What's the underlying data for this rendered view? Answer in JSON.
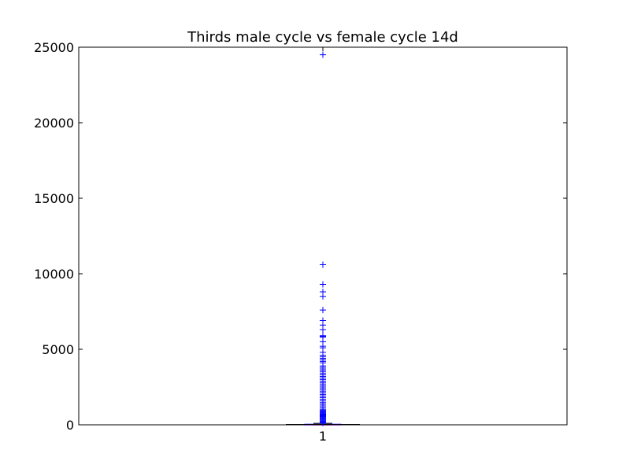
{
  "chart_data": {
    "type": "box",
    "title": "Thirds male cycle vs female cycle 14d",
    "xlabel": "",
    "ylabel": "",
    "categories": [
      "1"
    ],
    "ylim": [
      0,
      25000
    ],
    "yticks": [
      0,
      5000,
      10000,
      15000,
      20000,
      25000
    ],
    "ytick_labels": [
      "0",
      "5000",
      "10000",
      "15000",
      "20000",
      "25000"
    ],
    "grid": false,
    "box": {
      "whislo": 0,
      "q1": 5,
      "median": 15,
      "q3": 40,
      "whishi": 100
    },
    "fliers": [
      24500,
      10600,
      9300,
      8800,
      8500,
      7600,
      6900,
      6600,
      6300,
      5900,
      5850,
      5800,
      5500,
      5200,
      5100,
      4800,
      4600,
      4500,
      4400,
      4300,
      4200,
      4100,
      3900,
      3800,
      3700,
      3600,
      3500,
      3400,
      3300,
      3200,
      3100,
      3000,
      2900,
      2800,
      2700,
      2600,
      2500,
      2400,
      2300,
      2200,
      2100,
      2000,
      1900,
      1800,
      1700,
      1600,
      1500,
      1400,
      1300,
      1200,
      1100,
      1000,
      950,
      900,
      850,
      800,
      750,
      700,
      650,
      600,
      550,
      500,
      450,
      400,
      350,
      300,
      250,
      200,
      150,
      120
    ],
    "colors": {
      "box": "#0000ff",
      "median": "#ff0000",
      "flier": "#0000ff",
      "frame": "#000000"
    }
  }
}
